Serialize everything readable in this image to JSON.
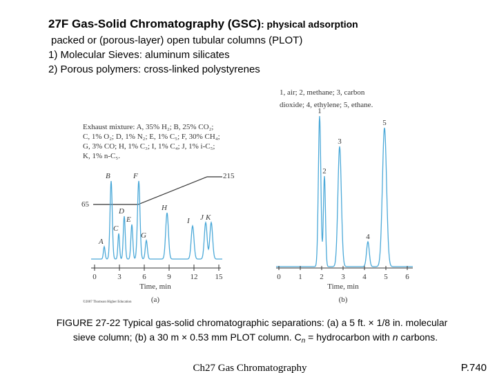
{
  "title": {
    "main": "27F Gas-Solid Chromatography (GSC)",
    "sub": ": physical adsorption"
  },
  "lines": [
    "packed or (porous-layer) open tubular columns (PLOT)",
    "1) Molecular Sieves: aluminum silicates",
    "2) Porous polymers: cross-linked polystyrenes"
  ],
  "figure_a": {
    "legend": [
      "Exhaust mixture: A, 35% H₂; B, 25% CO₂;",
      "C, 1% O₂; D, 1% N₂; E, 1% C₅; F, 30% CH₄;",
      "G, 3% CO; H, 1% C₃; I, 1% C₄; J, 1% i-C₅;",
      "K, 1% n-C₅."
    ],
    "peaks": [
      "A",
      "B",
      "C",
      "D",
      "E",
      "F",
      "G",
      "H",
      "I",
      "J",
      "K"
    ],
    "temps": [
      "65",
      "215"
    ],
    "xticks": [
      "0",
      "3",
      "6",
      "9",
      "12",
      "15"
    ],
    "xlabel": "Time, min",
    "credit": "©2007 Thomson Higher Education",
    "panel": "(a)"
  },
  "figure_b": {
    "legend": [
      "1, air;  2,  methane;  3,  carbon",
      "dioxide; 4,  ethylene;  5,  ethane."
    ],
    "peaks": [
      "1",
      "2",
      "3",
      "4",
      "5"
    ],
    "xticks": [
      "0",
      "1",
      "2",
      "3",
      "4",
      "5",
      "6"
    ],
    "xlabel": "Time, min",
    "panel": "(b)"
  },
  "caption": {
    "line1": "FIGURE 27-22 Typical gas-solid chromatographic separations: (a) a 5 ft. × 1/8 in. molecular",
    "line2_a": "sieve column; (b) a 30 m × 0.53 mm PLOT column.  C",
    "line2_sub": "n",
    "line2_b": " = hydrocarbon with ",
    "line2_n": "n",
    "line2_c": " carbons."
  },
  "footer": {
    "center": "Ch27 Gas Chromatography",
    "right": "P.740"
  }
}
